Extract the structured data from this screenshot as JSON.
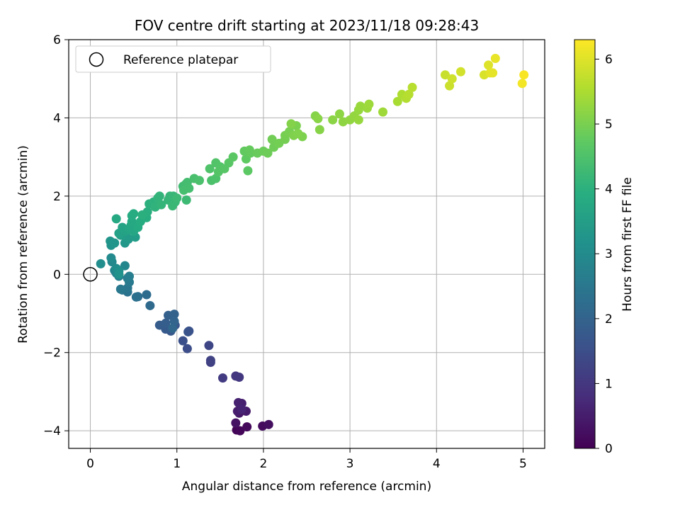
{
  "chart_data": {
    "type": "scatter",
    "title": "FOV centre drift starting at 2023/11/18 09:28:43",
    "xlabel": "Angular distance from reference (arcmin)",
    "ylabel": "Rotation from reference (arcmin)",
    "xlim": [
      -0.25,
      5.25
    ],
    "ylim": [
      -4.45,
      6.0
    ],
    "xticks": [
      0,
      1,
      2,
      3,
      4,
      5
    ],
    "yticks": [
      -4,
      -2,
      0,
      2,
      4,
      6
    ],
    "xtick_labels": [
      "0",
      "1",
      "2",
      "3",
      "4",
      "5"
    ],
    "ytick_labels": [
      "−4",
      "−2",
      "0",
      "2",
      "4",
      "6"
    ],
    "grid": true,
    "legend": {
      "position": "top-left",
      "label": "Reference platepar"
    },
    "reference_point": {
      "x": 0,
      "y": 0
    },
    "colorbar": {
      "label": "Hours from first FF file",
      "range": [
        0,
        6.3
      ],
      "ticks": [
        0,
        1,
        2,
        3,
        4,
        5,
        6
      ],
      "tick_labels": [
        "0",
        "1",
        "2",
        "3",
        "4",
        "5",
        "6"
      ],
      "colormap": "viridis"
    },
    "points": [
      [
        1.69,
        -3.98,
        0.05
      ],
      [
        1.73,
        -4.0,
        0.1
      ],
      [
        1.81,
        -3.9,
        0.15
      ],
      [
        1.99,
        -3.88,
        0.2
      ],
      [
        2.06,
        -3.84,
        0.25
      ],
      [
        1.68,
        -3.8,
        0.3
      ],
      [
        1.72,
        -3.55,
        0.4
      ],
      [
        1.8,
        -3.5,
        0.45
      ],
      [
        1.7,
        -3.5,
        0.5
      ],
      [
        1.75,
        -3.3,
        0.55
      ],
      [
        1.71,
        -3.28,
        0.6
      ],
      [
        1.75,
        -3.45,
        0.65
      ],
      [
        1.68,
        -2.6,
        1.0
      ],
      [
        1.72,
        -2.63,
        1.05
      ],
      [
        1.53,
        -2.65,
        1.1
      ],
      [
        1.39,
        -2.25,
        1.2
      ],
      [
        1.39,
        -2.2,
        1.25
      ],
      [
        1.37,
        -1.82,
        1.35
      ],
      [
        1.12,
        -1.9,
        1.5
      ],
      [
        1.07,
        -1.7,
        1.55
      ],
      [
        1.14,
        -1.45,
        1.6
      ],
      [
        1.13,
        -1.47,
        1.65
      ],
      [
        0.98,
        -1.3,
        1.7
      ],
      [
        0.93,
        -1.45,
        1.75
      ],
      [
        0.87,
        -1.4,
        1.8
      ],
      [
        0.8,
        -1.3,
        1.85
      ],
      [
        0.87,
        -1.25,
        1.9
      ],
      [
        0.9,
        -1.05,
        1.95
      ],
      [
        0.97,
        -1.02,
        2.0
      ],
      [
        0.97,
        -1.2,
        2.05
      ],
      [
        0.95,
        -1.38,
        2.1
      ],
      [
        0.69,
        -0.8,
        2.2
      ],
      [
        0.65,
        -0.52,
        2.25
      ],
      [
        0.55,
        -0.57,
        2.3
      ],
      [
        0.53,
        -0.58,
        2.35
      ],
      [
        0.43,
        -0.45,
        2.4
      ],
      [
        0.37,
        -0.4,
        2.45
      ],
      [
        0.43,
        -0.35,
        2.5
      ],
      [
        0.35,
        -0.38,
        2.55
      ],
      [
        0.45,
        -0.2,
        2.6
      ],
      [
        0.43,
        -0.1,
        2.65
      ],
      [
        0.45,
        -0.05,
        2.7
      ],
      [
        0.33,
        -0.05,
        2.75
      ],
      [
        0.3,
        0.03,
        2.8
      ],
      [
        0.28,
        0.1,
        2.85
      ],
      [
        0.4,
        0.22,
        2.9
      ],
      [
        0.25,
        0.32,
        2.95
      ],
      [
        0.24,
        0.42,
        3.0
      ],
      [
        0.3,
        0.15,
        3.05
      ],
      [
        0.12,
        0.27,
        3.1
      ],
      [
        0.33,
        0.08,
        3.15
      ],
      [
        0.33,
        0.0,
        3.2
      ],
      [
        0.24,
        0.74,
        3.25
      ],
      [
        0.23,
        0.85,
        3.28
      ],
      [
        0.28,
        0.8,
        3.32
      ],
      [
        0.4,
        0.8,
        3.35
      ],
      [
        0.44,
        0.9,
        3.4
      ],
      [
        0.42,
        0.95,
        3.45
      ],
      [
        0.52,
        0.95,
        3.5
      ],
      [
        0.35,
        1.0,
        3.55
      ],
      [
        0.33,
        1.05,
        3.6
      ],
      [
        0.4,
        1.1,
        3.65
      ],
      [
        0.37,
        1.2,
        3.7
      ],
      [
        0.45,
        1.15,
        3.72
      ],
      [
        0.5,
        1.1,
        3.75
      ],
      [
        0.47,
        1.25,
        3.78
      ],
      [
        0.3,
        1.42,
        3.8
      ],
      [
        0.48,
        1.35,
        3.82
      ],
      [
        0.55,
        1.2,
        3.85
      ],
      [
        0.48,
        1.5,
        3.88
      ],
      [
        0.5,
        1.55,
        3.9
      ],
      [
        0.58,
        1.35,
        3.92
      ],
      [
        0.65,
        1.45,
        3.95
      ],
      [
        0.66,
        1.6,
        3.98
      ],
      [
        0.6,
        1.52,
        4.0
      ],
      [
        0.68,
        1.8,
        4.02
      ],
      [
        0.73,
        1.85,
        4.05
      ],
      [
        0.75,
        1.72,
        4.08
      ],
      [
        0.78,
        1.95,
        4.1
      ],
      [
        0.8,
        2.0,
        4.12
      ],
      [
        0.82,
        1.78,
        4.14
      ],
      [
        0.9,
        1.9,
        4.16
      ],
      [
        0.92,
        2.0,
        4.18
      ],
      [
        0.96,
        2.0,
        4.2
      ],
      [
        0.98,
        1.85,
        4.22
      ],
      [
        0.95,
        1.75,
        4.24
      ],
      [
        1.0,
        1.95,
        4.26
      ],
      [
        1.11,
        1.9,
        4.28
      ],
      [
        1.07,
        2.25,
        4.32
      ],
      [
        1.1,
        2.3,
        4.35
      ],
      [
        1.12,
        2.35,
        4.38
      ],
      [
        1.14,
        2.2,
        4.4
      ],
      [
        1.08,
        2.15,
        4.42
      ],
      [
        1.2,
        2.45,
        4.45
      ],
      [
        1.26,
        2.4,
        4.48
      ],
      [
        1.4,
        2.4,
        4.5
      ],
      [
        1.45,
        2.45,
        4.52
      ],
      [
        1.38,
        2.7,
        4.55
      ],
      [
        1.45,
        2.85,
        4.58
      ],
      [
        1.5,
        2.75,
        4.6
      ],
      [
        1.48,
        2.62,
        4.62
      ],
      [
        1.55,
        2.7,
        4.65
      ],
      [
        1.6,
        2.85,
        4.68
      ],
      [
        1.65,
        3.0,
        4.7
      ],
      [
        1.82,
        2.65,
        4.72
      ],
      [
        1.8,
        2.95,
        4.75
      ],
      [
        1.78,
        3.15,
        4.78
      ],
      [
        1.85,
        3.1,
        4.8
      ],
      [
        1.84,
        3.18,
        4.82
      ],
      [
        1.93,
        3.1,
        4.85
      ],
      [
        2.0,
        3.15,
        4.88
      ],
      [
        2.05,
        3.1,
        4.9
      ],
      [
        2.12,
        3.25,
        4.92
      ],
      [
        2.1,
        3.45,
        4.94
      ],
      [
        2.18,
        3.35,
        4.96
      ],
      [
        2.25,
        3.45,
        4.98
      ],
      [
        2.25,
        3.55,
        5.0
      ],
      [
        2.3,
        3.65,
        5.02
      ],
      [
        2.38,
        3.8,
        5.04
      ],
      [
        2.45,
        3.52,
        5.06
      ],
      [
        2.35,
        3.55,
        5.08
      ],
      [
        2.4,
        3.6,
        5.1
      ],
      [
        2.32,
        3.85,
        5.12
      ],
      [
        2.6,
        4.05,
        5.14
      ],
      [
        2.65,
        3.7,
        5.16
      ],
      [
        2.63,
        3.98,
        5.18
      ],
      [
        2.8,
        3.95,
        5.2
      ],
      [
        2.88,
        4.1,
        5.22
      ],
      [
        2.92,
        3.9,
        5.24
      ],
      [
        3.0,
        3.95,
        5.26
      ],
      [
        3.05,
        4.05,
        5.28
      ],
      [
        3.1,
        4.2,
        5.3
      ],
      [
        3.1,
        3.95,
        5.32
      ],
      [
        3.12,
        4.3,
        5.34
      ],
      [
        3.2,
        4.25,
        5.36
      ],
      [
        3.22,
        4.35,
        5.38
      ],
      [
        3.38,
        4.15,
        5.4
      ],
      [
        3.55,
        4.42,
        5.5
      ],
      [
        3.6,
        4.6,
        5.55
      ],
      [
        3.65,
        4.5,
        5.6
      ],
      [
        3.68,
        4.6,
        5.62
      ],
      [
        3.72,
        4.78,
        5.65
      ],
      [
        4.1,
        5.1,
        5.8
      ],
      [
        4.15,
        4.82,
        5.82
      ],
      [
        4.18,
        5.0,
        5.85
      ],
      [
        4.28,
        5.18,
        5.88
      ],
      [
        4.55,
        5.1,
        5.95
      ],
      [
        4.6,
        5.35,
        6.0
      ],
      [
        4.62,
        5.15,
        6.05
      ],
      [
        4.65,
        5.15,
        6.08
      ],
      [
        4.68,
        5.52,
        6.1
      ],
      [
        4.99,
        4.88,
        6.2
      ],
      [
        5.01,
        5.1,
        6.25
      ]
    ]
  }
}
